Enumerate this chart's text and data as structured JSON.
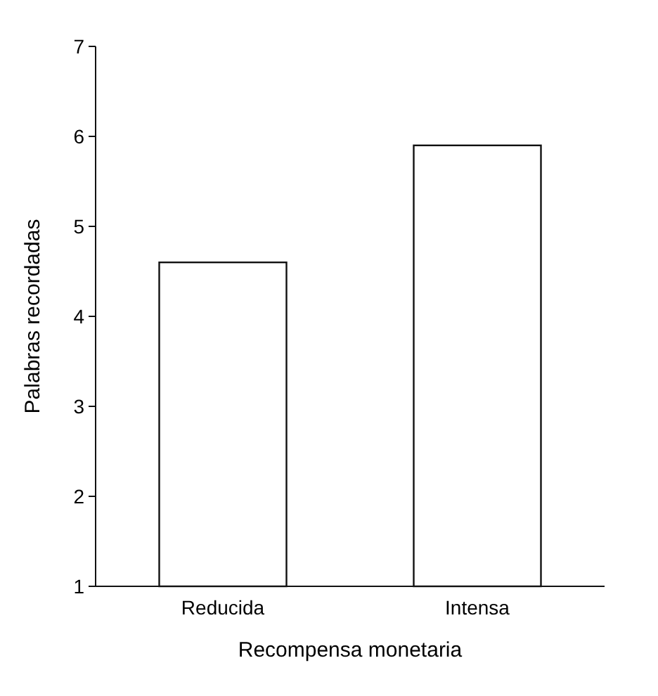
{
  "chart_data": {
    "type": "bar",
    "xlabel": "Recompensa monetaria",
    "ylabel": "Palabras recordadas",
    "categories": [
      "Reducida",
      "Intensa"
    ],
    "values": [
      4.6,
      5.9
    ],
    "color": "#ffffff",
    "ylim": [
      1,
      7
    ],
    "yticks": [
      1,
      2,
      3,
      4,
      5,
      6,
      7
    ],
    "grid": false
  }
}
